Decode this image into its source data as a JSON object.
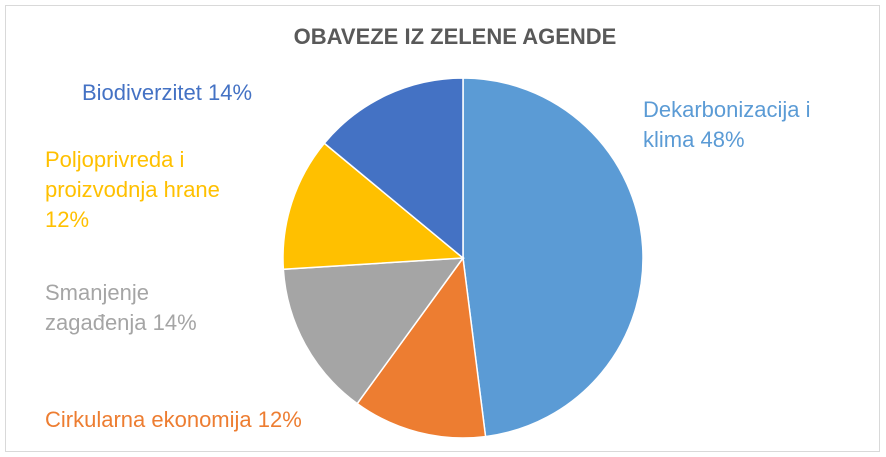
{
  "chart_data": {
    "type": "pie",
    "title": "OBAVEZE IZ ZELENE AGENDE",
    "categories": [
      "Dekarbonizacija i klima",
      "Cirkularna ekonomija",
      "Smanjenje zagađenja",
      "Poljoprivreda i proizvodnja hrane",
      "Biodiverzitet"
    ],
    "values": [
      48,
      12,
      14,
      12,
      14
    ],
    "value_labels": [
      "48%",
      "12%",
      "14%",
      "12%",
      "14%"
    ],
    "colors": [
      "#5B9BD5",
      "#ED7D31",
      "#A5A5A5",
      "#FFC000",
      "#4472C4"
    ]
  }
}
